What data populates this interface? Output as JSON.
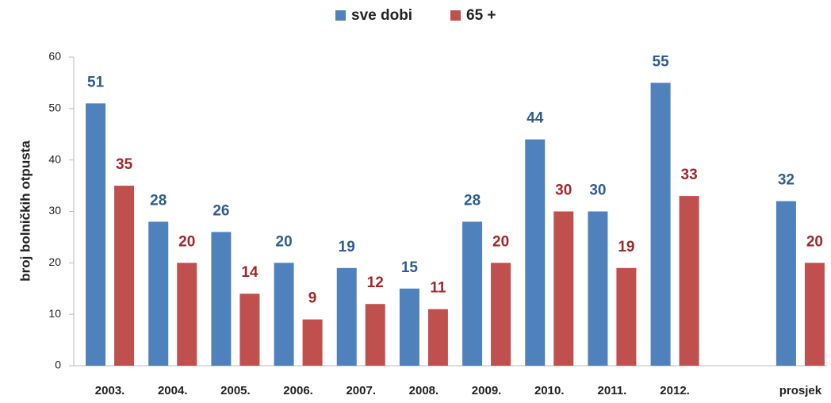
{
  "chart_data": {
    "type": "bar",
    "categories": [
      "2003.",
      "2004.",
      "2005.",
      "2006.",
      "2007.",
      "2008.",
      "2009.",
      "2010.",
      "2011.",
      "2012.",
      null,
      "prosjek"
    ],
    "series": [
      {
        "name": "sve dobi",
        "color": "#4f81bd",
        "label_color": "#2f5d8f",
        "values": [
          51,
          28,
          26,
          20,
          19,
          15,
          28,
          44,
          30,
          55,
          null,
          32
        ]
      },
      {
        "name": "65 +",
        "color": "#c0504d",
        "label_color": "#a0282a",
        "values": [
          35,
          20,
          14,
          9,
          12,
          11,
          20,
          30,
          19,
          33,
          null,
          20
        ]
      }
    ],
    "y_label": "broj bolničkih otpusta",
    "ylim": [
      0,
      60
    ],
    "yticks": [
      0,
      10,
      20,
      30,
      40,
      50,
      60
    ],
    "grid": false,
    "legend": "top"
  }
}
